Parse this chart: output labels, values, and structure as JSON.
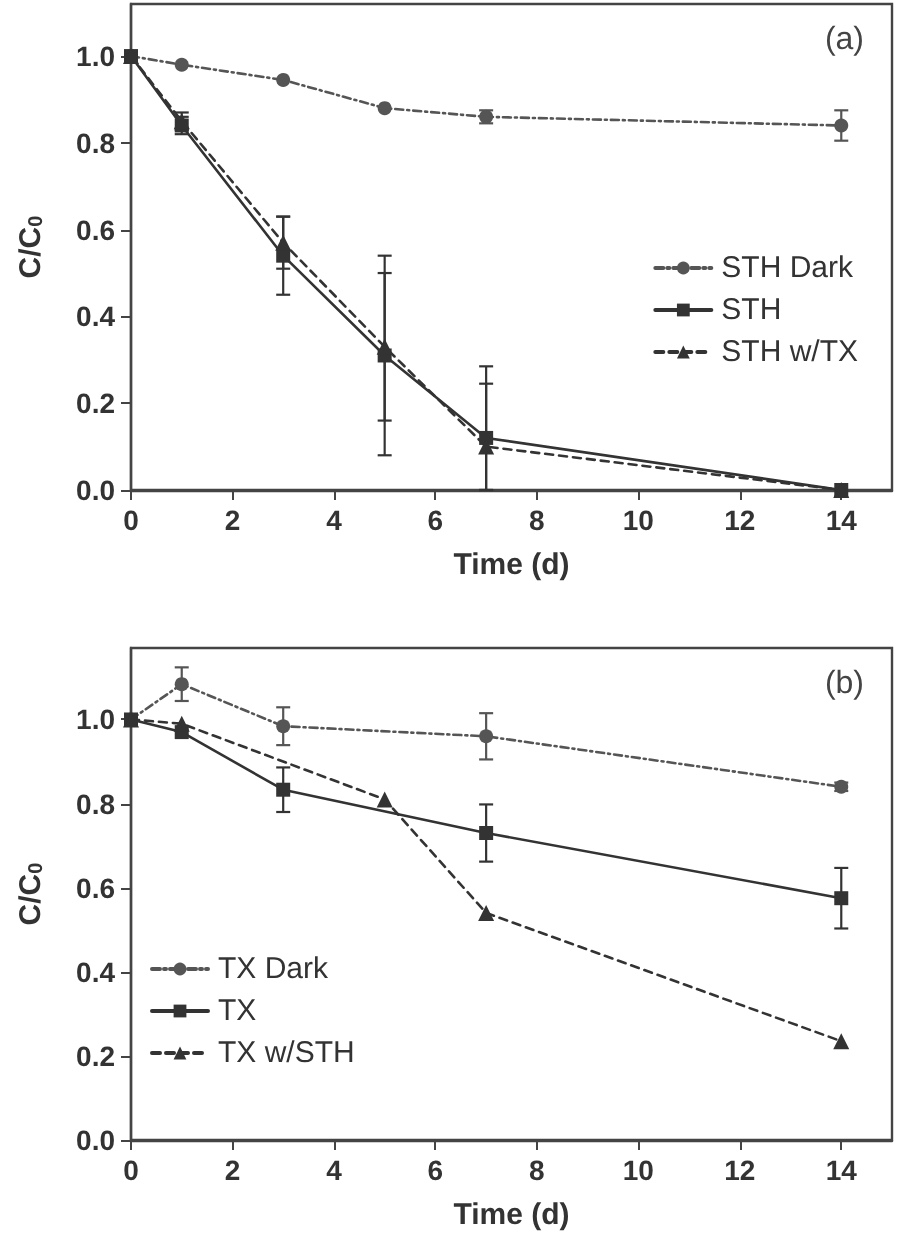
{
  "chart_data": [
    {
      "type": "line",
      "annotations": [
        "(a)"
      ],
      "xlabel": "Time (d)",
      "ylabel": "C/C$_{0}$",
      "x": [
        0,
        1,
        3,
        5,
        7,
        14
      ],
      "xlim": [
        0,
        15
      ],
      "xticks": [
        0,
        2,
        4,
        6,
        8,
        10,
        12,
        14
      ],
      "ylim": [
        0,
        1.12
      ],
      "yticks": [
        {
          "value": 0,
          "label": "0.0"
        },
        {
          "value": 0.2,
          "label": "0.2"
        },
        {
          "value": 0.4,
          "label": "0.4"
        },
        {
          "value": 0.6,
          "label": "0.6"
        },
        {
          "value": 0.8,
          "label": "0.8"
        },
        {
          "value": 1,
          "label": "1.0"
        }
      ],
      "grid": false,
      "legend": "right",
      "series": [
        {
          "name": "STH Dark",
          "color": "#555555",
          "marker": "circle",
          "line_style": "dotted",
          "values": [
            1.0,
            0.98,
            0.945,
            0.88,
            0.86,
            0.84
          ],
          "errors": [
            null,
            null,
            null,
            null,
            0.015,
            0.035
          ]
        },
        {
          "name": "STH",
          "color": "#333333",
          "marker": "square",
          "line_style": "solid",
          "values": [
            1.0,
            0.84,
            0.54,
            0.31,
            0.12,
            0.0
          ],
          "errors": [
            null,
            0.02,
            0.09,
            0.23,
            [
              0.0,
              0.285
            ],
            null
          ]
        },
        {
          "name": "STH w/TX",
          "color": "#333333",
          "marker": "triangle",
          "line_style": "dashed",
          "values": [
            1.0,
            0.85,
            0.57,
            0.33,
            0.1,
            0.0
          ],
          "errors": [
            null,
            0.02,
            0.06,
            0.17,
            [
              0.0,
              0.245
            ],
            null
          ]
        }
      ]
    },
    {
      "type": "line",
      "annotations": [
        "(b)"
      ],
      "xlabel": "Time (d)",
      "ylabel": "C/C$_{0}$",
      "xlim": [
        0,
        15
      ],
      "xticks": [
        0,
        2,
        4,
        6,
        8,
        10,
        12,
        14
      ],
      "ylim": [
        0,
        1.17
      ],
      "yticks": [
        {
          "value": 0,
          "label": "0.0"
        },
        {
          "value": 0.2,
          "label": "0.2"
        },
        {
          "value": 0.4,
          "label": "0.4"
        },
        {
          "value": 0.6,
          "label": "0.6"
        },
        {
          "value": 0.8,
          "label": "0.8"
        },
        {
          "value": 1,
          "label": "1.0"
        }
      ],
      "grid": false,
      "legend": "bottom left",
      "series": [
        {
          "name": "TX Dark",
          "color": "#555555",
          "marker": "circle",
          "line_style": "dotted",
          "x": [
            0,
            1,
            3,
            7,
            14
          ],
          "values": [
            1.0,
            1.084,
            0.984,
            0.96,
            0.84
          ],
          "errors": [
            null,
            0.04,
            0.045,
            0.055,
            0.01
          ]
        },
        {
          "name": "TX",
          "color": "#333333",
          "marker": "square",
          "line_style": "solid",
          "x": [
            0,
            1,
            3,
            7,
            14
          ],
          "values": [
            1.0,
            0.97,
            0.833,
            0.73,
            0.575
          ],
          "errors": [
            null,
            null,
            0.053,
            0.068,
            0.072
          ]
        },
        {
          "name": "TX w/STH",
          "color": "#333333",
          "marker": "triangle",
          "line_style": "dashed",
          "x": [
            0,
            1,
            5,
            7,
            14
          ],
          "values": [
            1.0,
            0.99,
            0.81,
            0.54,
            0.235
          ]
        }
      ]
    }
  ]
}
